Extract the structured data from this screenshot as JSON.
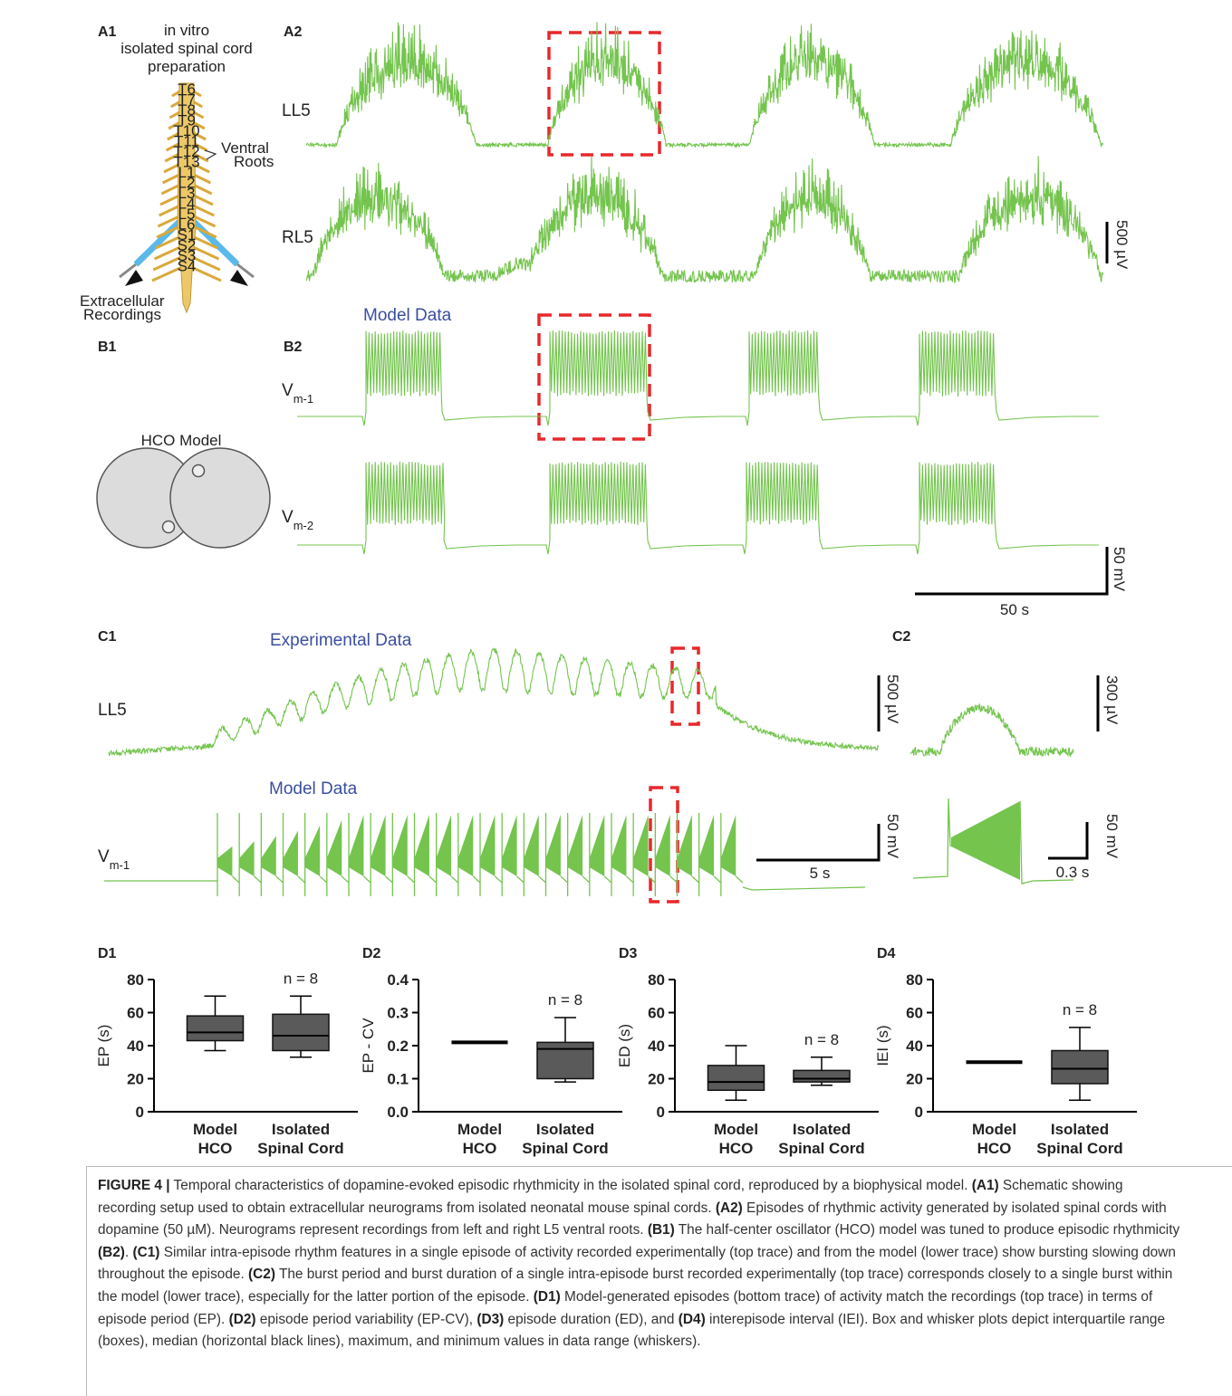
{
  "figure": {
    "a1": {
      "label": "A1",
      "title": [
        "in vitro",
        "isolated spinal cord",
        "preparation"
      ],
      "ventral": [
        "Ventral",
        "Roots"
      ],
      "recordings": [
        "Extracellular",
        "Recordings"
      ],
      "segments": [
        "T6",
        "T7",
        "T8",
        "T9",
        "T10",
        "T11",
        "T12",
        "T13",
        "L1",
        "L2",
        "L3",
        "L4",
        "L5",
        "L6",
        "S1",
        "S2",
        "S3",
        "S4"
      ]
    },
    "a2": {
      "label": "A2",
      "traces": [
        "LL5",
        "RL5"
      ],
      "scale": "500 µV"
    },
    "b1": {
      "label": "B1",
      "model": "HCO Model"
    },
    "b2": {
      "label": "B2",
      "title": "Model Data",
      "traces": [
        {
          "main": "V",
          "sub": "m-1"
        },
        {
          "main": "V",
          "sub": "m-2"
        }
      ],
      "scale_y": "50 mV",
      "scale_x": "50 s"
    },
    "c1": {
      "label": "C1",
      "exp_title": "Experimental Data",
      "model_title": "Model Data",
      "trace_top": "LL5",
      "trace_bottom": {
        "main": "V",
        "sub": "m-1"
      },
      "scale_top": "500 µV",
      "scale_y": "50 mV",
      "scale_x": "5 s"
    },
    "c2": {
      "label": "C2",
      "scale_top": "300 µV",
      "scale_y": "50 mV",
      "scale_x": "0.3 s"
    }
  },
  "chart_data": [
    {
      "type": "box",
      "label": "D1",
      "ylabel": "EP (s)",
      "ylim": [
        0,
        80
      ],
      "yticks": [
        0,
        20,
        40,
        60,
        80
      ],
      "categories": [
        [
          "Model",
          "HCO"
        ],
        [
          "Isolated",
          "Spinal Cord"
        ]
      ],
      "boxes": [
        {
          "min": 37,
          "q1": 43,
          "median": 48,
          "q3": 58,
          "max": 70
        },
        {
          "min": 33,
          "q1": 37,
          "median": 46,
          "q3": 59,
          "max": 70
        }
      ],
      "annotation": "n = 8",
      "color": "#5a5a5a"
    },
    {
      "type": "box",
      "label": "D2",
      "ylabel": "EP - CV",
      "ylim": [
        0,
        0.4
      ],
      "yticks": [
        {
          "value": 0,
          "label": "0.0"
        },
        0.1,
        0.2,
        0.3,
        0.4
      ],
      "categories": [
        [
          "Model",
          "HCO"
        ],
        [
          "Isolated",
          "Spinal Cord"
        ]
      ],
      "boxes": [
        {
          "min": 0.21,
          "q1": 0.21,
          "median": 0.21,
          "q3": 0.21,
          "max": 0.21
        },
        {
          "min": 0.09,
          "q1": 0.1,
          "median": 0.19,
          "q3": 0.21,
          "max": 0.285
        }
      ],
      "annotation": "n = 8",
      "color": "#5a5a5a"
    },
    {
      "type": "box",
      "label": "D3",
      "ylabel": "ED (s)",
      "ylim": [
        0,
        80
      ],
      "yticks": [
        0,
        20,
        40,
        60,
        80
      ],
      "categories": [
        [
          "Model",
          "HCO"
        ],
        [
          "Isolated",
          "Spinal Cord"
        ]
      ],
      "boxes": [
        {
          "min": 7,
          "q1": 13,
          "median": 18,
          "q3": 28,
          "max": 40
        },
        {
          "min": 16,
          "q1": 18,
          "median": 20,
          "q3": 25,
          "max": 33
        }
      ],
      "annotation": "n = 8",
      "color": "#5a5a5a"
    },
    {
      "type": "box",
      "label": "D4",
      "ylabel": "IEI (s)",
      "ylim": [
        0,
        80
      ],
      "yticks": [
        0,
        20,
        40,
        60,
        80
      ],
      "categories": [
        [
          "Model",
          "HCO"
        ],
        [
          "Isolated",
          "Spinal Cord"
        ]
      ],
      "boxes": [
        {
          "min": 30,
          "q1": 30,
          "median": 30,
          "q3": 30,
          "max": 30
        },
        {
          "min": 7,
          "q1": 17,
          "median": 26,
          "q3": 37,
          "max": 51
        }
      ],
      "annotation": "n = 8",
      "color": "#5a5a5a"
    }
  ],
  "caption": [
    {
      "text": "FIGURE 4 |",
      "bold": true
    },
    {
      "text": " Temporal characteristics of dopamine-evoked episodic rhythmicity in the isolated spinal cord, reproduced by a biophysical model. "
    },
    {
      "text": "(A1)",
      "bold": true
    },
    {
      "text": " Schematic showing recording setup used to obtain extracellular neurograms from isolated neonatal mouse spinal cords. "
    },
    {
      "text": "(A2)",
      "bold": true
    },
    {
      "text": " Episodes of rhythmic activity generated by isolated spinal cords with dopamine (50 µM). Neurograms represent recordings from left and right L5 ventral roots. "
    },
    {
      "text": "(B1)",
      "bold": true
    },
    {
      "text": " The half-center oscillator (HCO) model was tuned to produce episodic rhythmicity "
    },
    {
      "text": "(B2)",
      "bold": true
    },
    {
      "text": ". "
    },
    {
      "text": "(C1)",
      "bold": true
    },
    {
      "text": " Similar intra-episode rhythm features in a single episode of activity recorded experimentally (top trace) and from the model (lower trace) show bursting slowing down throughout the episode. "
    },
    {
      "text": "(C2)",
      "bold": true
    },
    {
      "text": " The burst period and burst duration of a single intra-episode burst recorded experimentally (top trace) corresponds closely to a single burst within the model (lower trace), especially for the latter portion of the episode. "
    },
    {
      "text": "(D1)",
      "bold": true
    },
    {
      "text": " Model-generated episodes (bottom trace) of activity match the recordings (top trace) in terms of episode period (EP). "
    },
    {
      "text": "(D2)",
      "bold": true
    },
    {
      "text": " episode period variability (EP-CV), "
    },
    {
      "text": "(D3)",
      "bold": true
    },
    {
      "text": " episode duration (ED), and "
    },
    {
      "text": "(D4)",
      "bold": true
    },
    {
      "text": " interepisode interval (IEI). Box and whisker plots depict interquartile range (boxes), median (horizontal black lines), maximum, and minimum values in data range (whiskers)."
    }
  ]
}
